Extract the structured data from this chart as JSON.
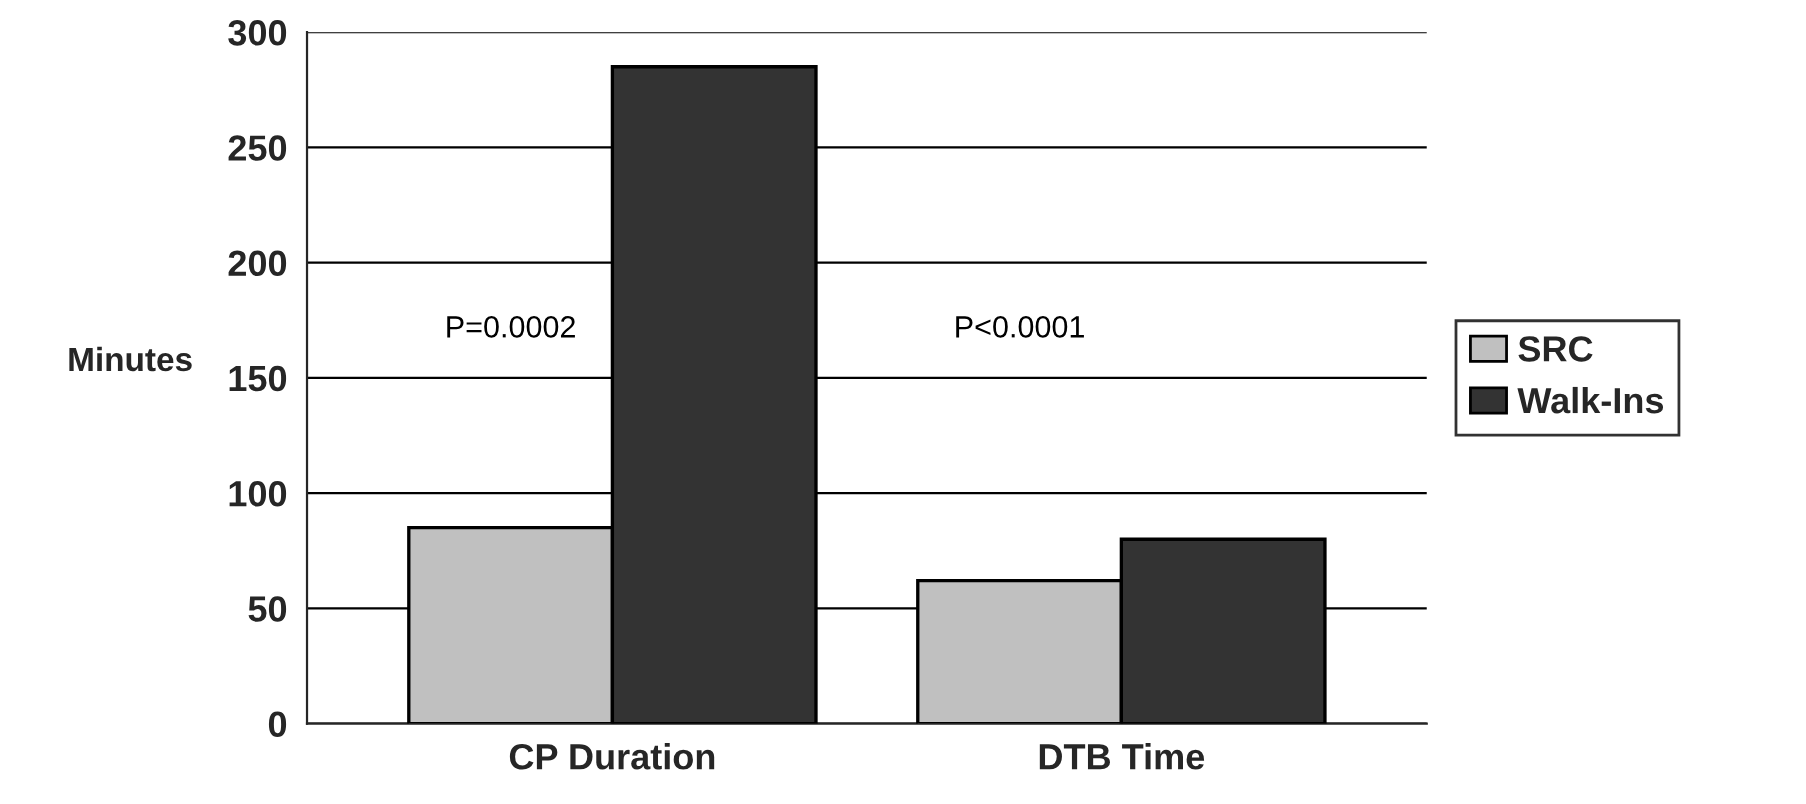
{
  "chart_data": {
    "type": "bar",
    "ylabel": "Minutes",
    "categories": [
      "CP Duration",
      "DTB Time"
    ],
    "series": [
      {
        "name": "SRC",
        "color": "#c0c0c0",
        "values": [
          85,
          62
        ]
      },
      {
        "name": "Walk-Ins",
        "color": "#333333",
        "values": [
          285,
          80
        ]
      }
    ],
    "ylim": [
      0,
      300
    ],
    "yticks": [
      0,
      50,
      100,
      150,
      200,
      250,
      300
    ],
    "grid": "y",
    "legend": "right",
    "annotations": [
      "P=0.0002",
      "P<0.0001"
    ]
  }
}
